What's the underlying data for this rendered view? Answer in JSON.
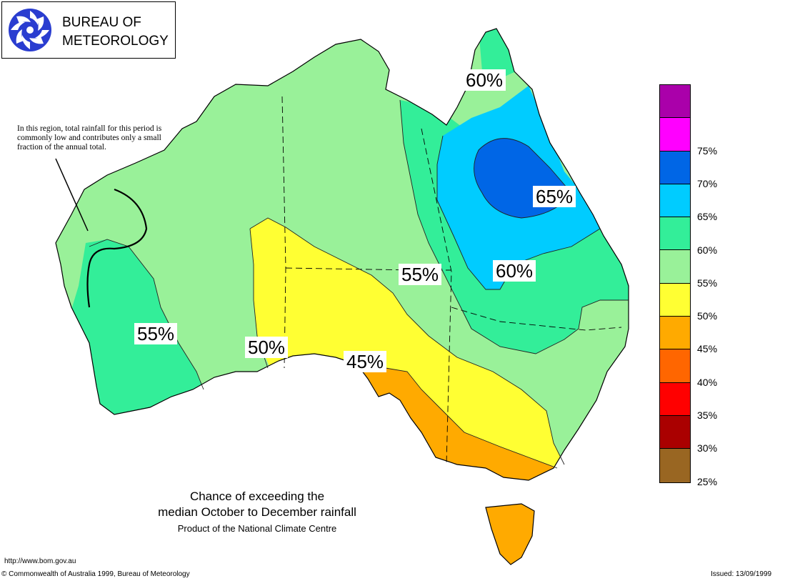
{
  "header": {
    "org_line1": "BUREAU OF",
    "org_line2": "METEOROLOGY",
    "logo_icon": "bom-swirl-icon"
  },
  "map": {
    "region": "Australia",
    "palette": {
      "ocean": "#ffffff",
      "outline": "#000000"
    },
    "contour_labels": [
      {
        "id": "nw",
        "text": "60%"
      },
      {
        "id": "qld_core",
        "text": "65%"
      },
      {
        "id": "qld_mid",
        "text": "60%"
      },
      {
        "id": "central",
        "text": "55%"
      },
      {
        "id": "southwest",
        "text": "55%"
      },
      {
        "id": "south",
        "text": "50%"
      },
      {
        "id": "southeast",
        "text": "45%"
      }
    ],
    "note": "In this region, total rainfall for this period is commonly low and contributes only a small fraction of the annual total."
  },
  "caption": {
    "title_line1": "Chance of exceeding the",
    "title_line2": "median October to December rainfall",
    "subtitle": "Product of the National Climate Centre"
  },
  "legend": {
    "items": [
      {
        "color": "#aa00aa",
        "label": ""
      },
      {
        "color": "#ff00ff",
        "label": "75%"
      },
      {
        "color": "#0066e6",
        "label": "70%"
      },
      {
        "color": "#00ccff",
        "label": "65%"
      },
      {
        "color": "#33ee99",
        "label": "60%"
      },
      {
        "color": "#99f199",
        "label": "55%"
      },
      {
        "color": "#ffff33",
        "label": "50%"
      },
      {
        "color": "#ffaa00",
        "label": "45%"
      },
      {
        "color": "#ff6600",
        "label": "40%"
      },
      {
        "color": "#ff0000",
        "label": "35%"
      },
      {
        "color": "#aa0000",
        "label": "30%"
      },
      {
        "color": "#996622",
        "label": "25%"
      }
    ]
  },
  "footer": {
    "url": "http://www.bom.gov.au",
    "copyright": "© Commonwealth of Australia 1999, Bureau of Meteorology",
    "issued": "Issued: 13/09/1999"
  }
}
